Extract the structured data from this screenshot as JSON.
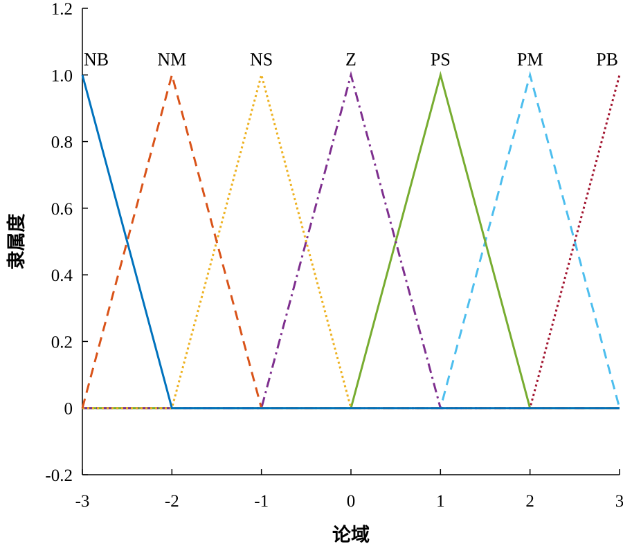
{
  "chart_data": {
    "type": "line",
    "title": "",
    "xlabel": "论域",
    "ylabel": "隶属度",
    "xlim": [
      -3,
      3
    ],
    "ylim": [
      -0.2,
      1.2
    ],
    "xticks": [
      -3,
      -2,
      -1,
      0,
      1,
      2,
      3
    ],
    "xtick_labels": [
      "-3",
      "-2",
      "-1",
      "0",
      "1",
      "2",
      "3"
    ],
    "yticks": [
      1.2,
      1.0,
      0.8,
      0.6,
      0.4,
      0.2,
      0,
      -0.2
    ],
    "ytick_labels": [
      "1.2",
      "1.0",
      "0.8",
      "0.6",
      "0.4",
      "0.2",
      "0",
      "-0.2"
    ],
    "grid": false,
    "series": [
      {
        "name": "NB",
        "color": "#0072BD",
        "dash": "solid",
        "x": [
          -3,
          -2,
          3
        ],
        "y": [
          1,
          0,
          0
        ]
      },
      {
        "name": "NM",
        "color": "#D95319",
        "dash": "dashed",
        "x": [
          -3,
          -2,
          -1,
          3
        ],
        "y": [
          0,
          1,
          0,
          0
        ]
      },
      {
        "name": "NS",
        "color": "#EDB120",
        "dash": "dotted",
        "x": [
          -3,
          -2,
          -1,
          0,
          3
        ],
        "y": [
          0,
          0,
          1,
          0,
          0
        ]
      },
      {
        "name": "Z",
        "color": "#7E2F8E",
        "dash": "dashdot",
        "x": [
          -3,
          -1,
          0,
          1,
          3
        ],
        "y": [
          0,
          0,
          1,
          0,
          0
        ]
      },
      {
        "name": "PS",
        "color": "#77AC30",
        "dash": "solid",
        "x": [
          -3,
          0,
          1,
          2,
          3
        ],
        "y": [
          0,
          0,
          1,
          0,
          0
        ]
      },
      {
        "name": "PM",
        "color": "#4DBEEE",
        "dash": "dashed",
        "x": [
          -3,
          1,
          2,
          3
        ],
        "y": [
          0,
          0,
          1,
          0
        ]
      },
      {
        "name": "PB",
        "color": "#A2142F",
        "dash": "dotted",
        "x": [
          -3,
          2,
          3
        ],
        "y": [
          0,
          0,
          1
        ]
      }
    ]
  }
}
